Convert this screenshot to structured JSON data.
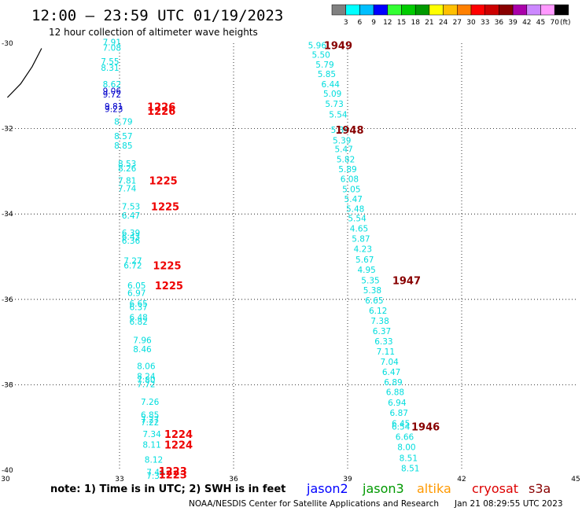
{
  "title": "12:00 – 23:59 UTC 01/19/2023",
  "subtitle": "12 hour collection of altimeter wave heights",
  "note": "note: 1) Time is in UTC; 2) SWH is in feet",
  "credit": "NOAA/NESDIS Center for Satellite Applications and Research",
  "timestamp": "Jan 21 08:29:55 UTC 2023",
  "satellites": [
    {
      "name": "jason2",
      "color": "#0000ff"
    },
    {
      "name": "jason3",
      "color": "#009900"
    },
    {
      "name": "altika",
      "color": "#ff9900"
    },
    {
      "name": "cryosat",
      "color": "#dd0000"
    },
    {
      "name": "s3a",
      "color": "#880000"
    }
  ],
  "colorbar": {
    "unit": "(ft)",
    "colors": [
      "#808080",
      "#00ffff",
      "#00bfff",
      "#0000ff",
      "#33ff33",
      "#00cc00",
      "#009900",
      "#ffff00",
      "#ffc000",
      "#ff8000",
      "#ff0000",
      "#cc0000",
      "#880000",
      "#aa00aa",
      "#cc88ff",
      "#ff99ff",
      "#000000"
    ],
    "labels": [
      "3",
      "6",
      "9",
      "12",
      "15",
      "18",
      "21",
      "24",
      "27",
      "30",
      "33",
      "36",
      "39",
      "42",
      "45",
      "70"
    ]
  },
  "chart_data": {
    "type": "scatter",
    "x_ticks": [
      "30",
      "33",
      "36",
      "39",
      "42",
      "45"
    ],
    "y_ticks": [
      "-30",
      "-32",
      "-34",
      "-36",
      "-38",
      "-40"
    ],
    "xlim": [
      30,
      45
    ],
    "ylim": [
      -40,
      -30
    ],
    "grid": true,
    "coastline": [
      [
        30.05,
        -31.27
      ],
      [
        30.4,
        -30.95
      ],
      [
        30.7,
        -30.55
      ],
      [
        30.95,
        -30.12
      ]
    ],
    "tracks": [
      {
        "color": "#00dddd",
        "points": [
          {
            "x": 32.8,
            "y": -29.97,
            "v": "7.91"
          },
          {
            "x": 32.8,
            "y": -30.1,
            "v": "7.08"
          },
          {
            "x": 32.75,
            "y": -30.42,
            "v": "7.55"
          },
          {
            "x": 32.75,
            "y": -30.57,
            "v": "8.31"
          },
          {
            "x": 32.8,
            "y": -30.96,
            "v": "8.62"
          },
          {
            "x": 33.1,
            "y": -31.83,
            "v": "8.79"
          },
          {
            "x": 33.1,
            "y": -32.17,
            "v": "8.57"
          },
          {
            "x": 33.1,
            "y": -32.39,
            "v": "8.85"
          },
          {
            "x": 33.2,
            "y": -32.82,
            "v": "8.53"
          },
          {
            "x": 33.2,
            "y": -32.93,
            "v": "8.26"
          },
          {
            "x": 33.2,
            "y": -33.21,
            "v": "7.81"
          },
          {
            "x": 33.2,
            "y": -33.4,
            "v": "7.74"
          },
          {
            "x": 33.3,
            "y": -33.82,
            "v": "7.53"
          },
          {
            "x": 33.3,
            "y": -34.03,
            "v": "6.47"
          },
          {
            "x": 33.3,
            "y": -34.44,
            "v": "6.39"
          },
          {
            "x": 33.3,
            "y": -34.53,
            "v": "6.43"
          },
          {
            "x": 33.3,
            "y": -34.62,
            "v": "6.36"
          },
          {
            "x": 33.35,
            "y": -35.09,
            "v": "7.27"
          },
          {
            "x": 33.35,
            "y": -35.2,
            "v": "6.72"
          },
          {
            "x": 33.45,
            "y": -35.67,
            "v": "6.05"
          },
          {
            "x": 33.45,
            "y": -35.85,
            "v": "6.97"
          },
          {
            "x": 33.5,
            "y": -36.1,
            "v": "6.65"
          },
          {
            "x": 33.5,
            "y": -36.18,
            "v": "6.37"
          },
          {
            "x": 33.5,
            "y": -36.42,
            "v": "6.48"
          },
          {
            "x": 33.5,
            "y": -36.52,
            "v": "6.82"
          },
          {
            "x": 33.6,
            "y": -36.95,
            "v": "7.96"
          },
          {
            "x": 33.6,
            "y": -37.16,
            "v": "8.46"
          },
          {
            "x": 33.7,
            "y": -37.56,
            "v": "8.06"
          },
          {
            "x": 33.7,
            "y": -37.8,
            "v": "8.24"
          },
          {
            "x": 33.7,
            "y": -37.88,
            "v": "7.80"
          },
          {
            "x": 33.7,
            "y": -37.98,
            "v": "7.72"
          },
          {
            "x": 33.8,
            "y": -38.4,
            "v": "7.26"
          },
          {
            "x": 33.8,
            "y": -38.7,
            "v": "6.85"
          },
          {
            "x": 33.8,
            "y": -38.81,
            "v": "7.27"
          },
          {
            "x": 33.8,
            "y": -38.88,
            "v": "7.22"
          },
          {
            "x": 33.85,
            "y": -39.15,
            "v": "7.34"
          },
          {
            "x": 33.85,
            "y": -39.4,
            "v": "8.11"
          },
          {
            "x": 33.9,
            "y": -39.75,
            "v": "8.12"
          },
          {
            "x": 33.95,
            "y": -40.05,
            "v": "7.44"
          },
          {
            "x": 33.95,
            "y": -40.13,
            "v": "7.37"
          }
        ]
      },
      {
        "color": "#0000cc",
        "points": [
          {
            "x": 32.8,
            "y": -31.11,
            "v": "9.06"
          },
          {
            "x": 32.8,
            "y": -31.2,
            "v": "9.72"
          },
          {
            "x": 32.85,
            "y": -31.47,
            "v": "9.81"
          },
          {
            "x": 32.85,
            "y": -31.54,
            "v": "9.23"
          }
        ]
      },
      {
        "color": "#00dddd",
        "points": [
          {
            "x": 38.2,
            "y": -30.05,
            "v": "5.96"
          },
          {
            "x": 38.3,
            "y": -30.27,
            "v": "5.50"
          },
          {
            "x": 38.4,
            "y": -30.5,
            "v": "5.79"
          },
          {
            "x": 38.45,
            "y": -30.72,
            "v": "5.85"
          },
          {
            "x": 38.55,
            "y": -30.96,
            "v": "6.44"
          },
          {
            "x": 38.6,
            "y": -31.18,
            "v": "5.09"
          },
          {
            "x": 38.65,
            "y": -31.42,
            "v": "5.73"
          },
          {
            "x": 38.75,
            "y": -31.67,
            "v": "5.54"
          },
          {
            "x": 38.8,
            "y": -32.03,
            "v": "5.34"
          },
          {
            "x": 38.85,
            "y": -32.27,
            "v": "5.39"
          },
          {
            "x": 38.9,
            "y": -32.48,
            "v": "5.47"
          },
          {
            "x": 38.95,
            "y": -32.72,
            "v": "5.82"
          },
          {
            "x": 39.0,
            "y": -32.95,
            "v": "5.89"
          },
          {
            "x": 39.05,
            "y": -33.18,
            "v": "6.08"
          },
          {
            "x": 39.1,
            "y": -33.42,
            "v": "5.05"
          },
          {
            "x": 39.15,
            "y": -33.65,
            "v": "5.47"
          },
          {
            "x": 39.2,
            "y": -33.88,
            "v": "5.48"
          },
          {
            "x": 39.25,
            "y": -34.1,
            "v": "5.54"
          },
          {
            "x": 39.3,
            "y": -34.34,
            "v": "4.65"
          },
          {
            "x": 39.35,
            "y": -34.58,
            "v": "5.87"
          },
          {
            "x": 39.4,
            "y": -34.82,
            "v": "4.23"
          },
          {
            "x": 39.45,
            "y": -35.06,
            "v": "5.67"
          },
          {
            "x": 39.5,
            "y": -35.3,
            "v": "4.95"
          },
          {
            "x": 39.6,
            "y": -35.55,
            "v": "5.35"
          },
          {
            "x": 39.65,
            "y": -35.78,
            "v": "5.38"
          },
          {
            "x": 39.7,
            "y": -36.02,
            "v": "6.65"
          },
          {
            "x": 39.8,
            "y": -36.26,
            "v": "6.12"
          },
          {
            "x": 39.85,
            "y": -36.5,
            "v": "7.38"
          },
          {
            "x": 39.9,
            "y": -36.74,
            "v": "6.37"
          },
          {
            "x": 39.95,
            "y": -36.98,
            "v": "6.33"
          },
          {
            "x": 40.0,
            "y": -37.22,
            "v": "7.11"
          },
          {
            "x": 40.1,
            "y": -37.46,
            "v": "7.04"
          },
          {
            "x": 40.15,
            "y": -37.7,
            "v": "6.47"
          },
          {
            "x": 40.2,
            "y": -37.94,
            "v": "6.89"
          },
          {
            "x": 40.25,
            "y": -38.17,
            "v": "6.88"
          },
          {
            "x": 40.3,
            "y": -38.42,
            "v": "6.94"
          },
          {
            "x": 40.35,
            "y": -38.66,
            "v": "6.87"
          },
          {
            "x": 40.4,
            "y": -38.9,
            "v": "6.45"
          },
          {
            "x": 40.4,
            "y": -38.98,
            "v": "6.54"
          },
          {
            "x": 40.5,
            "y": -39.22,
            "v": "6.66"
          },
          {
            "x": 40.55,
            "y": -39.46,
            "v": "8.00"
          },
          {
            "x": 40.6,
            "y": -39.71,
            "v": "8.51"
          },
          {
            "x": 40.65,
            "y": -39.95,
            "v": "8.51"
          }
        ]
      }
    ],
    "time_labels": [
      {
        "x": 34.1,
        "y": -31.48,
        "t": "1226",
        "color": "#ee0000"
      },
      {
        "x": 34.1,
        "y": -31.58,
        "t": "1226",
        "color": "#ee0000"
      },
      {
        "x": 34.15,
        "y": -33.21,
        "t": "1225",
        "color": "#ee0000"
      },
      {
        "x": 34.2,
        "y": -33.82,
        "t": "1225",
        "color": "#ee0000"
      },
      {
        "x": 34.25,
        "y": -35.2,
        "t": "1225",
        "color": "#ee0000"
      },
      {
        "x": 34.3,
        "y": -35.67,
        "t": "1225",
        "color": "#ee0000"
      },
      {
        "x": 34.55,
        "y": -39.15,
        "t": "1224",
        "color": "#ee0000"
      },
      {
        "x": 34.55,
        "y": -39.4,
        "t": "1224",
        "color": "#ee0000"
      },
      {
        "x": 34.4,
        "y": -40.02,
        "t": "1223",
        "color": "#ee0000"
      },
      {
        "x": 34.4,
        "y": -40.1,
        "t": "1223",
        "color": "#ee0000"
      },
      {
        "x": 38.75,
        "y": -30.05,
        "t": "1949",
        "color": "#880000"
      },
      {
        "x": 39.05,
        "y": -32.03,
        "t": "1948",
        "color": "#880000"
      },
      {
        "x": 40.55,
        "y": -35.55,
        "t": "1947",
        "color": "#880000"
      },
      {
        "x": 41.05,
        "y": -38.98,
        "t": "1946",
        "color": "#880000"
      }
    ]
  }
}
